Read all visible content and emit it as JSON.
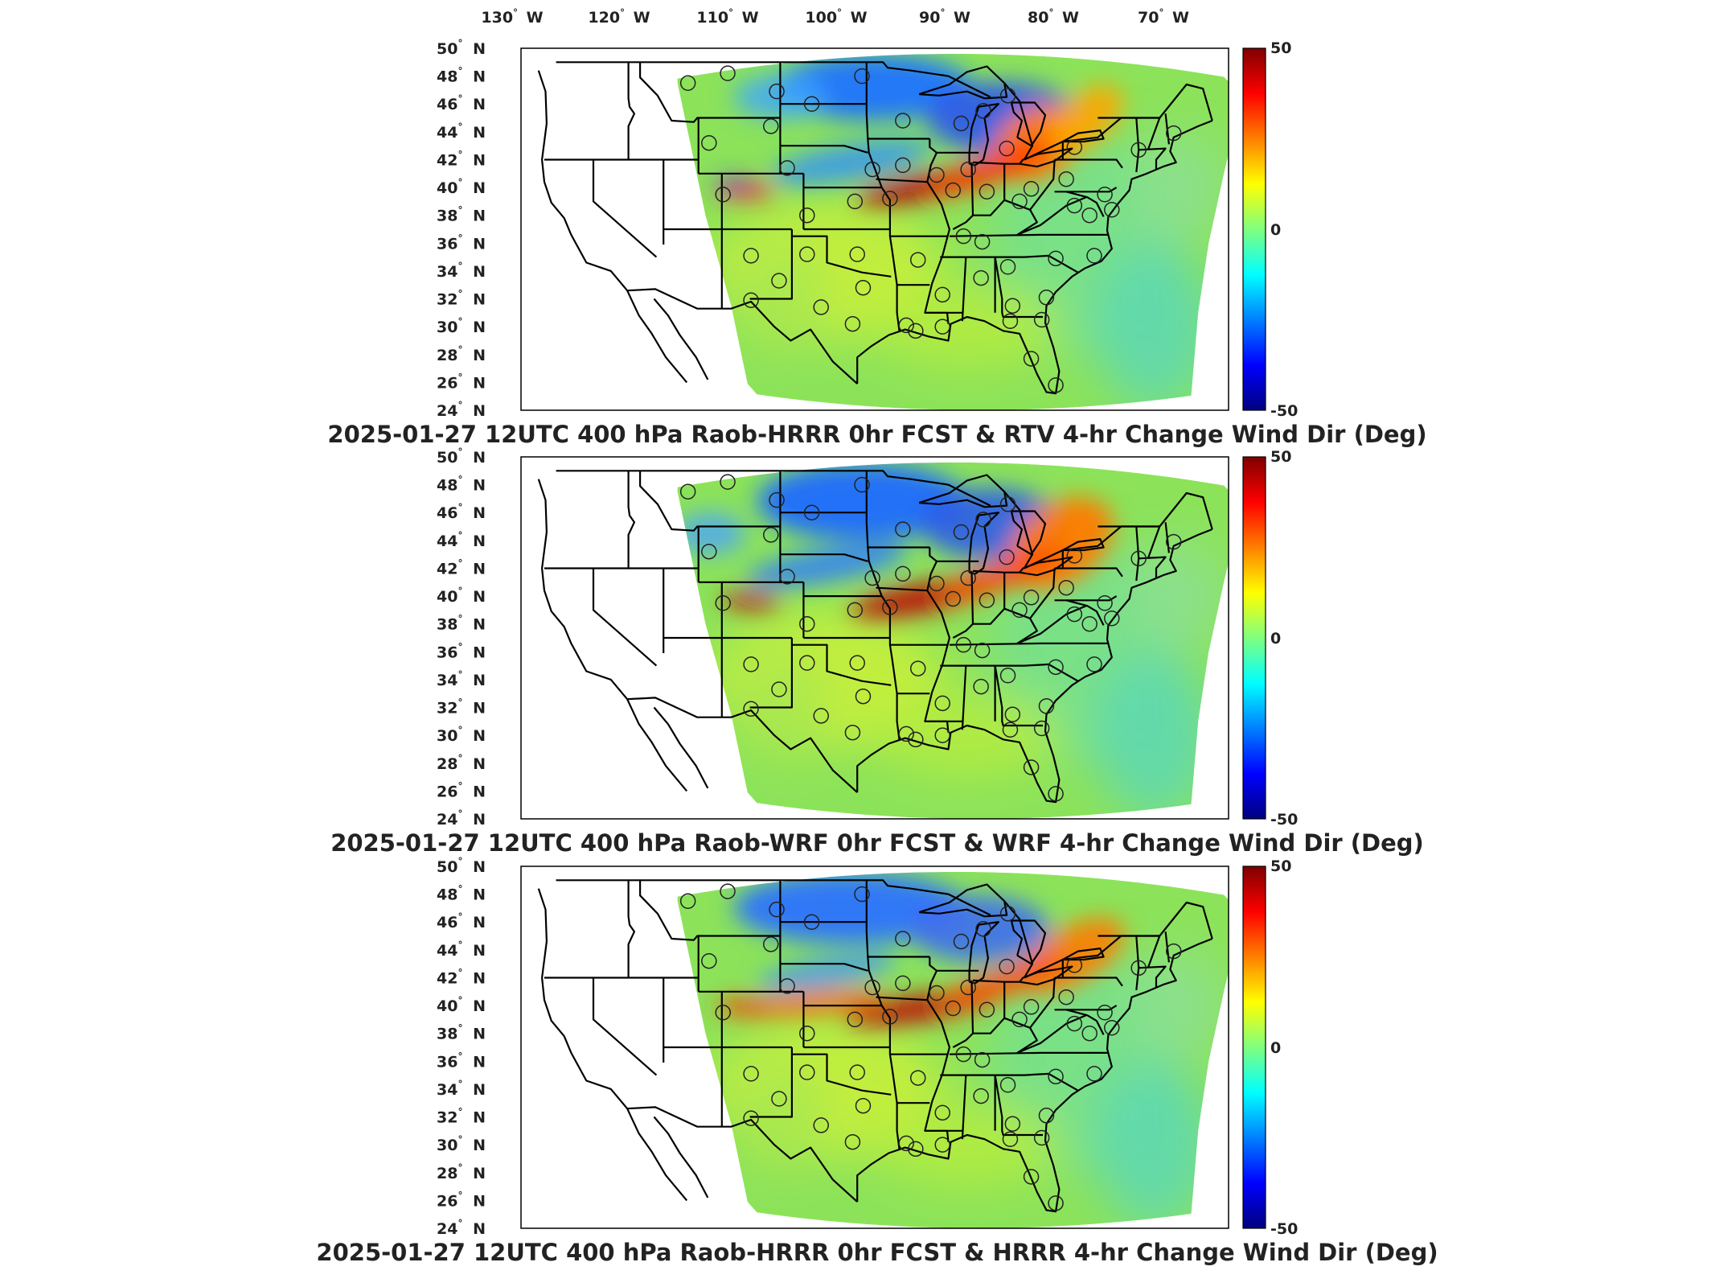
{
  "figure": {
    "top_lon_labels": [
      {
        "value": "130",
        "suffix": "W"
      },
      {
        "value": "120",
        "suffix": "W"
      },
      {
        "value": "110",
        "suffix": "W"
      },
      {
        "value": "100",
        "suffix": "W"
      },
      {
        "value": "90",
        "suffix": "W"
      },
      {
        "value": "80",
        "suffix": "W"
      },
      {
        "value": "70",
        "suffix": "W"
      }
    ],
    "lat_labels": [
      {
        "value": "50",
        "suffix": "N"
      },
      {
        "value": "48",
        "suffix": "N"
      },
      {
        "value": "46",
        "suffix": "N"
      },
      {
        "value": "44",
        "suffix": "N"
      },
      {
        "value": "42",
        "suffix": "N"
      },
      {
        "value": "40",
        "suffix": "N"
      },
      {
        "value": "38",
        "suffix": "N"
      },
      {
        "value": "36",
        "suffix": "N"
      },
      {
        "value": "34",
        "suffix": "N"
      },
      {
        "value": "32",
        "suffix": "N"
      },
      {
        "value": "30",
        "suffix": "N"
      },
      {
        "value": "28",
        "suffix": "N"
      },
      {
        "value": "26",
        "suffix": "N"
      },
      {
        "value": "24",
        "suffix": "N"
      }
    ],
    "colorbar": {
      "max": "50",
      "mid": "0",
      "min": "-50",
      "colormap": "jet"
    }
  },
  "panels": [
    {
      "title": "2025-01-27 12UTC 400 hPa Raob-HRRR 0hr FCST & RTV 4-hr Change Wind Dir (Deg)"
    },
    {
      "title": "2025-01-27 12UTC 400 hPa Raob-WRF 0hr FCST & WRF 4-hr Change Wind Dir (Deg)"
    },
    {
      "title": "2025-01-27 12UTC 400 hPa Raob-HRRR 0hr FCST & HRRR 4-hr Change Wind Dir (Deg)"
    }
  ],
  "raob_stations": [
    [
      -111.9,
      47.5
    ],
    [
      -108.5,
      48.2
    ],
    [
      -104.3,
      46.9
    ],
    [
      -101.3,
      46.0
    ],
    [
      -97.0,
      48.0
    ],
    [
      -93.5,
      44.8
    ],
    [
      -88.5,
      44.6
    ],
    [
      -86.6,
      45.5
    ],
    [
      -84.5,
      46.6
    ],
    [
      -84.6,
      42.8
    ],
    [
      -78.8,
      42.9
    ],
    [
      -73.3,
      42.7
    ],
    [
      -70.3,
      43.9
    ],
    [
      -110.1,
      43.2
    ],
    [
      -104.8,
      44.4
    ],
    [
      -103.4,
      41.4
    ],
    [
      -96.1,
      41.3
    ],
    [
      -93.5,
      41.6
    ],
    [
      -90.6,
      40.9
    ],
    [
      -87.9,
      41.3
    ],
    [
      -89.2,
      39.8
    ],
    [
      -86.3,
      39.7
    ],
    [
      -82.5,
      39.9
    ],
    [
      -79.5,
      40.6
    ],
    [
      -76.2,
      39.5
    ],
    [
      -77.5,
      38.0
    ],
    [
      -108.9,
      39.5
    ],
    [
      -97.6,
      39.0
    ],
    [
      -94.6,
      39.2
    ],
    [
      -101.7,
      38.0
    ],
    [
      -97.4,
      35.2
    ],
    [
      -92.2,
      34.8
    ],
    [
      -86.7,
      36.1
    ],
    [
      -84.5,
      34.3
    ],
    [
      -80.4,
      34.9
    ],
    [
      -77.1,
      35.1
    ],
    [
      -106.5,
      35.1
    ],
    [
      -101.7,
      35.2
    ],
    [
      -90.1,
      32.3
    ],
    [
      -86.8,
      33.5
    ],
    [
      -84.1,
      31.5
    ],
    [
      -81.2,
      32.1
    ],
    [
      -106.5,
      31.9
    ],
    [
      -97.8,
      30.2
    ],
    [
      -93.2,
      30.1
    ],
    [
      -90.1,
      30.0
    ],
    [
      -84.3,
      30.4
    ],
    [
      -81.6,
      30.5
    ],
    [
      -82.5,
      27.7
    ],
    [
      -80.4,
      25.8
    ],
    [
      -100.5,
      31.4
    ],
    [
      -104.1,
      33.3
    ],
    [
      -96.9,
      32.8
    ],
    [
      -92.4,
      29.7
    ],
    [
      -83.5,
      39.0
    ],
    [
      -88.3,
      36.5
    ],
    [
      -78.8,
      38.7
    ],
    [
      -75.6,
      38.4
    ]
  ]
}
